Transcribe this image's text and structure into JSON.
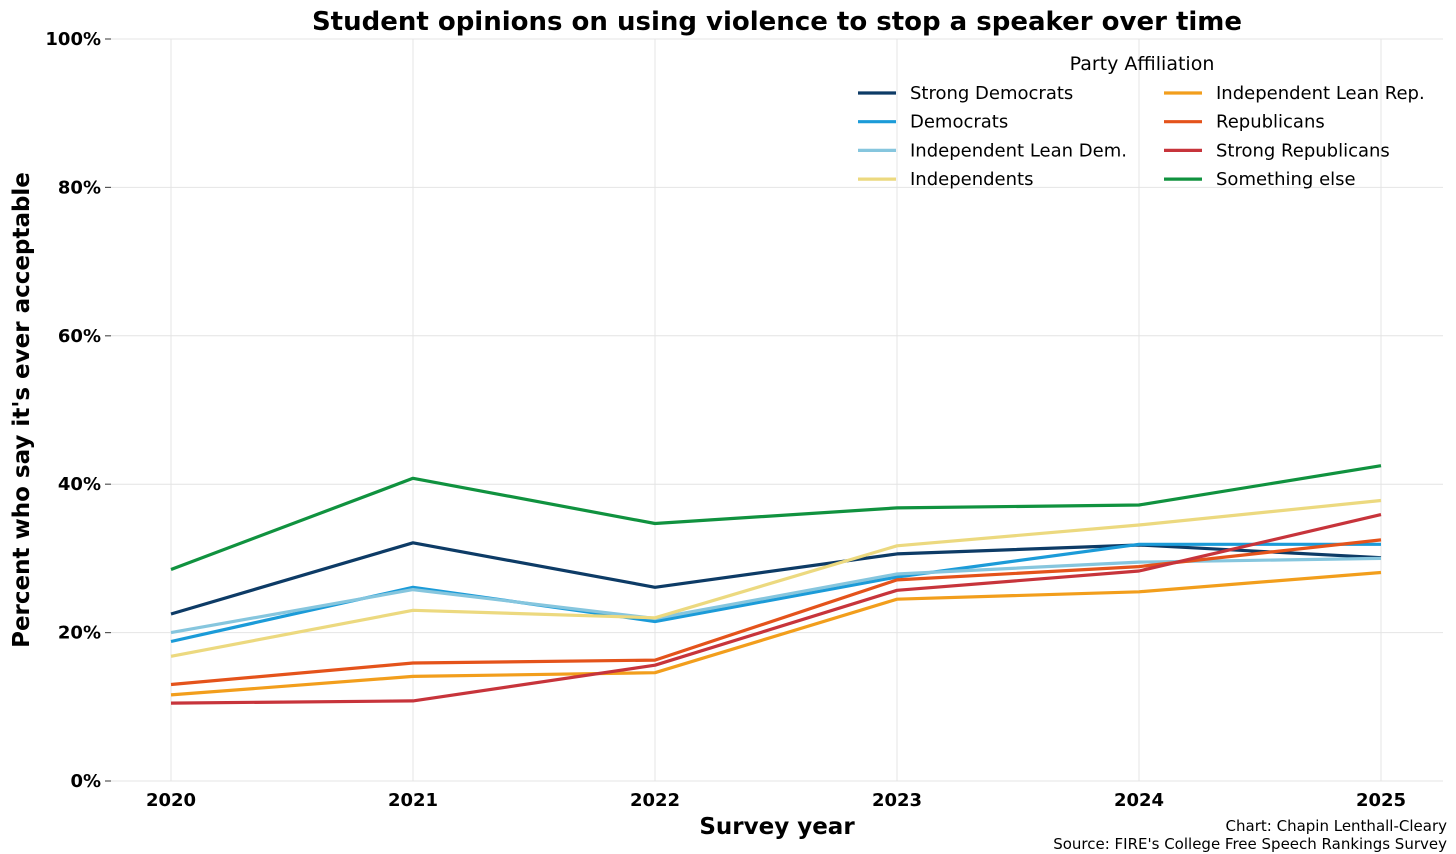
{
  "chart_data": {
    "type": "line",
    "title": "Student opinions on using violence to stop a speaker over time",
    "xlabel": "Survey year",
    "ylabel": "Percent who say it's ever acceptable",
    "x": [
      "2020",
      "2021",
      "2022",
      "2023",
      "2024",
      "2025"
    ],
    "ylim": [
      0,
      100
    ],
    "yticks": [
      "0%",
      "20%",
      "40%",
      "60%",
      "80%",
      "100%"
    ],
    "ytick_values": [
      0,
      20,
      40,
      60,
      80,
      100
    ],
    "grid": true,
    "legend": {
      "title": "Party Affiliation",
      "placement": "top-right",
      "columns": 2
    },
    "series": [
      {
        "name": "Strong Democrats",
        "color": "#0d3b66",
        "values": [
          22.5,
          32.1,
          26.1,
          30.6,
          31.8,
          30.1
        ]
      },
      {
        "name": "Democrats",
        "color": "#1b9bd8",
        "values": [
          18.8,
          26.1,
          21.5,
          27.5,
          31.9,
          31.9
        ]
      },
      {
        "name": "Independent Lean Dem.",
        "color": "#86c6de",
        "values": [
          20.0,
          25.8,
          21.9,
          27.9,
          29.5,
          30.0
        ]
      },
      {
        "name": "Independents",
        "color": "#ecd97f",
        "values": [
          16.8,
          23.0,
          22.0,
          31.7,
          34.5,
          37.8
        ]
      },
      {
        "name": "Independent Lean Rep.",
        "color": "#f29e1c",
        "values": [
          11.6,
          14.1,
          14.6,
          24.5,
          25.5,
          28.1
        ]
      },
      {
        "name": "Republicans",
        "color": "#e4531b",
        "values": [
          13.0,
          15.9,
          16.3,
          27.1,
          28.9,
          32.5
        ]
      },
      {
        "name": "Strong Republicans",
        "color": "#c7343b",
        "values": [
          10.5,
          10.8,
          15.6,
          25.7,
          28.3,
          35.9
        ]
      },
      {
        "name": "Something else",
        "color": "#10923f",
        "values": [
          28.5,
          40.8,
          34.7,
          36.8,
          37.2,
          42.5
        ]
      }
    ],
    "annotations": [
      "Chart: Chapin Lenthall-Cleary",
      "Source: FIRE's College Free Speech Rankings Survey"
    ]
  }
}
